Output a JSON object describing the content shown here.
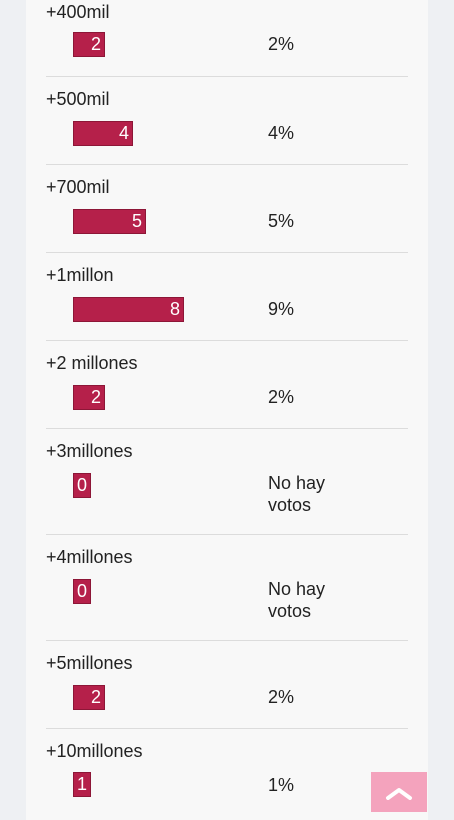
{
  "poll": {
    "bar_color": "#b5204a",
    "options": [
      {
        "label": "+400mil",
        "count": "2",
        "percent": "2%"
      },
      {
        "label": "+500mil",
        "count": "4",
        "percent": "4%"
      },
      {
        "label": "+700mil",
        "count": "5",
        "percent": "5%"
      },
      {
        "label": "+1millon",
        "count": "8",
        "percent": "9%"
      },
      {
        "label": "+2 millones",
        "count": "2",
        "percent": "2%"
      },
      {
        "label": "+3millones",
        "count": "0",
        "percent": "No hay votos"
      },
      {
        "label": "+4millones",
        "count": "0",
        "percent": "No hay votos"
      },
      {
        "label": "+5millones",
        "count": "2",
        "percent": "2%"
      },
      {
        "label": "+10millones",
        "count": "1",
        "percent": "1%"
      }
    ]
  },
  "scroll_top": {
    "icon": "chevron-up-icon",
    "color": "#f4a3bd"
  }
}
